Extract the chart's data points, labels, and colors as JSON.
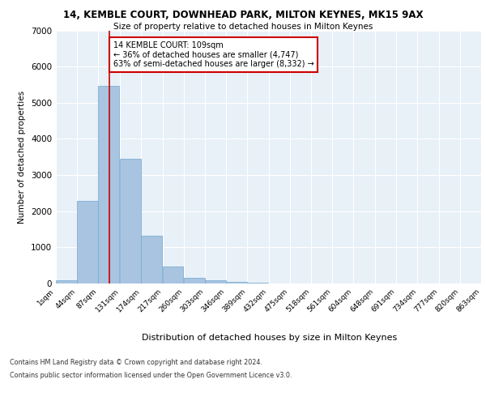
{
  "title": "14, KEMBLE COURT, DOWNHEAD PARK, MILTON KEYNES, MK15 9AX",
  "subtitle": "Size of property relative to detached houses in Milton Keynes",
  "xlabel": "Distribution of detached houses by size in Milton Keynes",
  "ylabel": "Number of detached properties",
  "bar_color": "#a8c4e0",
  "bar_edge_color": "#6fa8d0",
  "background_color": "#e8f0f8",
  "grid_color": "#ffffff",
  "annotation_line_color": "#cc0000",
  "annotation_box_color": "#cc0000",
  "annotation_text": "14 KEMBLE COURT: 109sqm\n← 36% of detached houses are smaller (4,747)\n63% of semi-detached houses are larger (8,332) →",
  "property_sqm": 109,
  "bins": [
    1,
    44,
    87,
    131,
    174,
    217,
    260,
    303,
    346,
    389,
    432,
    475,
    518,
    561,
    604,
    648,
    691,
    734,
    777,
    820,
    863
  ],
  "counts": [
    80,
    2280,
    5470,
    3450,
    1320,
    470,
    165,
    90,
    55,
    30,
    0,
    0,
    0,
    0,
    0,
    0,
    0,
    0,
    0,
    0
  ],
  "tick_labels": [
    "1sqm",
    "44sqm",
    "87sqm",
    "131sqm",
    "174sqm",
    "217sqm",
    "260sqm",
    "303sqm",
    "346sqm",
    "389sqm",
    "432sqm",
    "475sqm",
    "518sqm",
    "561sqm",
    "604sqm",
    "648sqm",
    "691sqm",
    "734sqm",
    "777sqm",
    "820sqm",
    "863sqm"
  ],
  "ylim": [
    0,
    7000
  ],
  "yticks": [
    0,
    1000,
    2000,
    3000,
    4000,
    5000,
    6000,
    7000
  ],
  "footer_line1": "Contains HM Land Registry data © Crown copyright and database right 2024.",
  "footer_line2": "Contains public sector information licensed under the Open Government Licence v3.0."
}
